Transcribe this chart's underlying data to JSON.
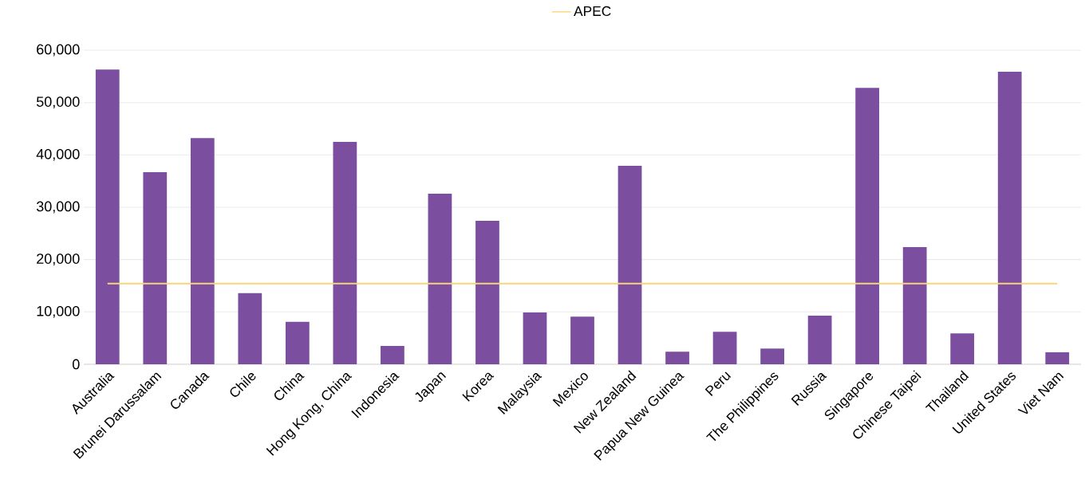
{
  "chart_data": {
    "type": "bar",
    "categories": [
      "Australia",
      "Brunei Darussalam",
      "Canada",
      "Chile",
      "China",
      "Hong Kong, China",
      "Indonesia",
      "Japan",
      "Korea",
      "Malaysia",
      "Mexico",
      "New Zealand",
      "Papua New Guinea",
      "Peru",
      "The Philippines",
      "Russia",
      "Singapore",
      "Chinese Taipei",
      "Thailand",
      "United States",
      "Viet Nam"
    ],
    "series": [
      {
        "color": "#7b4ea0",
        "values": [
          56300,
          36700,
          43200,
          13600,
          8100,
          42500,
          3500,
          32600,
          27400,
          9900,
          9100,
          37900,
          2400,
          6200,
          3000,
          9300,
          52800,
          22400,
          5900,
          55900,
          2300
        ]
      },
      {
        "name": "APEC",
        "type": "line",
        "color": "#f7d57a",
        "values": [
          15400,
          15400,
          15400,
          15400,
          15400,
          15400,
          15400,
          15400,
          15400,
          15400,
          15400,
          15400,
          15400,
          15400,
          15400,
          15400,
          15400,
          15400,
          15400,
          15400,
          15400
        ]
      }
    ],
    "ylim": [
      0,
      60000
    ],
    "yticks": [
      0,
      {
        "value": 10000,
        "label": "10,000"
      },
      {
        "value": 20000,
        "label": "20,000"
      },
      {
        "value": 30000,
        "label": "30,000"
      },
      {
        "value": 40000,
        "label": "40,000"
      },
      {
        "value": 50000,
        "label": "50,000"
      },
      {
        "value": 60000,
        "label": "60,000"
      }
    ],
    "grid": "y",
    "legend": "top"
  }
}
